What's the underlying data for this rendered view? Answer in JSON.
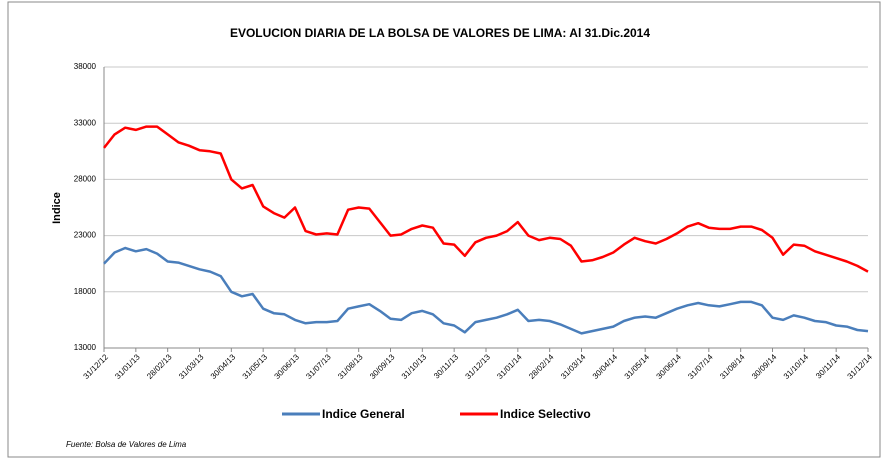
{
  "chart_data": {
    "type": "line",
    "title": "EVOLUCION  DIARIA  DE  LA BOLSA  DE VALORES  DE LIMA: Al 31.Dic.2014",
    "y_label": "Indice",
    "source": "Fuente: Bolsa de Valores de Lima",
    "categories": [
      "31/12/12",
      null,
      null,
      "31/01/13",
      null,
      null,
      "28/02/13",
      null,
      null,
      "31/03/13",
      null,
      null,
      "30/04/13",
      null,
      null,
      "31/05/13",
      null,
      null,
      "30/06/13",
      null,
      null,
      "31/07/13",
      null,
      null,
      "31/08/13",
      null,
      null,
      "30/09/13",
      null,
      null,
      "31/10/13",
      null,
      null,
      "30/11/13",
      null,
      null,
      "31/12/13",
      null,
      null,
      "31/01/14",
      null,
      null,
      "28/02/14",
      null,
      null,
      "31/03/14",
      null,
      null,
      "30/04/14",
      null,
      null,
      "31/05/14",
      null,
      null,
      "30/06/14",
      null,
      null,
      "31/07/14",
      null,
      null,
      "31/08/14",
      null,
      null,
      "30/09/14",
      null,
      null,
      "31/10/14",
      null,
      null,
      "30/11/14",
      null,
      null,
      "31/12/14"
    ],
    "series": [
      {
        "name": "Indice General",
        "color": "#4a7ebb",
        "values": [
          20500,
          21500,
          21900,
          21600,
          21800,
          21400,
          20700,
          20600,
          20300,
          20000,
          19800,
          19400,
          18000,
          17600,
          17800,
          16500,
          16100,
          16000,
          15500,
          15200,
          15300,
          15300,
          15400,
          16500,
          16700,
          16900,
          16300,
          15600,
          15500,
          16100,
          16300,
          16000,
          15200,
          15000,
          14400,
          15300,
          15500,
          15700,
          16000,
          16400,
          15400,
          15500,
          15400,
          15100,
          14700,
          14300,
          14500,
          14700,
          14900,
          15400,
          15700,
          15800,
          15700,
          16100,
          16500,
          16800,
          17000,
          16800,
          16700,
          16900,
          17100,
          17100,
          16800,
          15700,
          15500,
          15900,
          15700,
          15400,
          15300,
          15000,
          14900,
          14600,
          14500
        ]
      },
      {
        "name": "Indice Selectivo",
        "color": "#ff0000",
        "values": [
          30800,
          32000,
          32600,
          32400,
          32700,
          32700,
          32000,
          31300,
          31000,
          30600,
          30500,
          30300,
          28000,
          27200,
          27500,
          25600,
          25000,
          24600,
          25500,
          23400,
          23100,
          23200,
          23100,
          25300,
          25500,
          25400,
          24200,
          23000,
          23100,
          23600,
          23900,
          23700,
          22300,
          22200,
          21200,
          22400,
          22800,
          23000,
          23400,
          24200,
          23000,
          22600,
          22800,
          22700,
          22100,
          20700,
          20800,
          21100,
          21500,
          22200,
          22800,
          22500,
          22300,
          22700,
          23200,
          23800,
          24100,
          23700,
          23600,
          23600,
          23800,
          23800,
          23500,
          22800,
          21300,
          22200,
          22100,
          21600,
          21300,
          21000,
          20700,
          20300,
          19800
        ]
      }
    ],
    "ylim": [
      13000,
      38000
    ],
    "yticks": [
      13000,
      18000,
      23000,
      28000,
      33000,
      38000
    ],
    "grid": true,
    "legend": "bottom"
  }
}
